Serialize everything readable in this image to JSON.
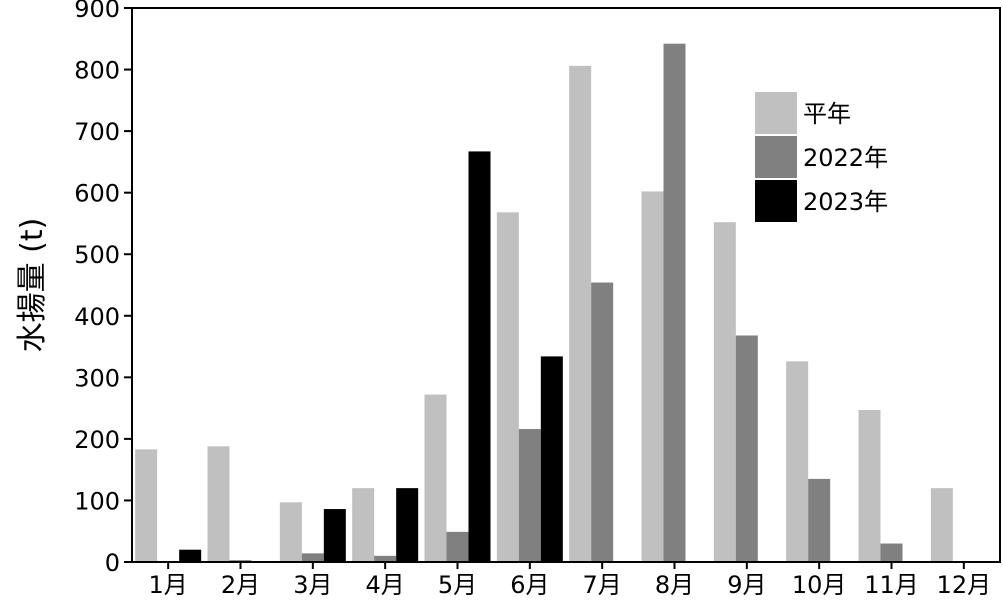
{
  "chart_data": {
    "type": "bar",
    "categories": [
      "1月",
      "2月",
      "3月",
      "4月",
      "5月",
      "6月",
      "7月",
      "8月",
      "9月",
      "10月",
      "11月",
      "12月"
    ],
    "series": [
      {
        "name": "平年",
        "color": "#c0c0c0",
        "values": [
          183,
          188,
          97,
          120,
          272,
          568,
          806,
          602,
          552,
          326,
          247,
          120
        ]
      },
      {
        "name": "2022年",
        "color": "#808080",
        "values": [
          0,
          3,
          14,
          10,
          49,
          216,
          454,
          842,
          368,
          135,
          30,
          0
        ]
      },
      {
        "name": "2023年",
        "color": "#000000",
        "values": [
          20,
          0,
          86,
          120,
          667,
          334,
          0,
          0,
          0,
          0,
          0,
          0
        ]
      }
    ],
    "ylabel": "水揚量 (t)",
    "xlabel": "",
    "ylim": [
      0,
      900
    ],
    "yticks": [
      0,
      100,
      200,
      300,
      400,
      500,
      600,
      700,
      800,
      900
    ],
    "legend_position": "top-right",
    "grid": false
  }
}
